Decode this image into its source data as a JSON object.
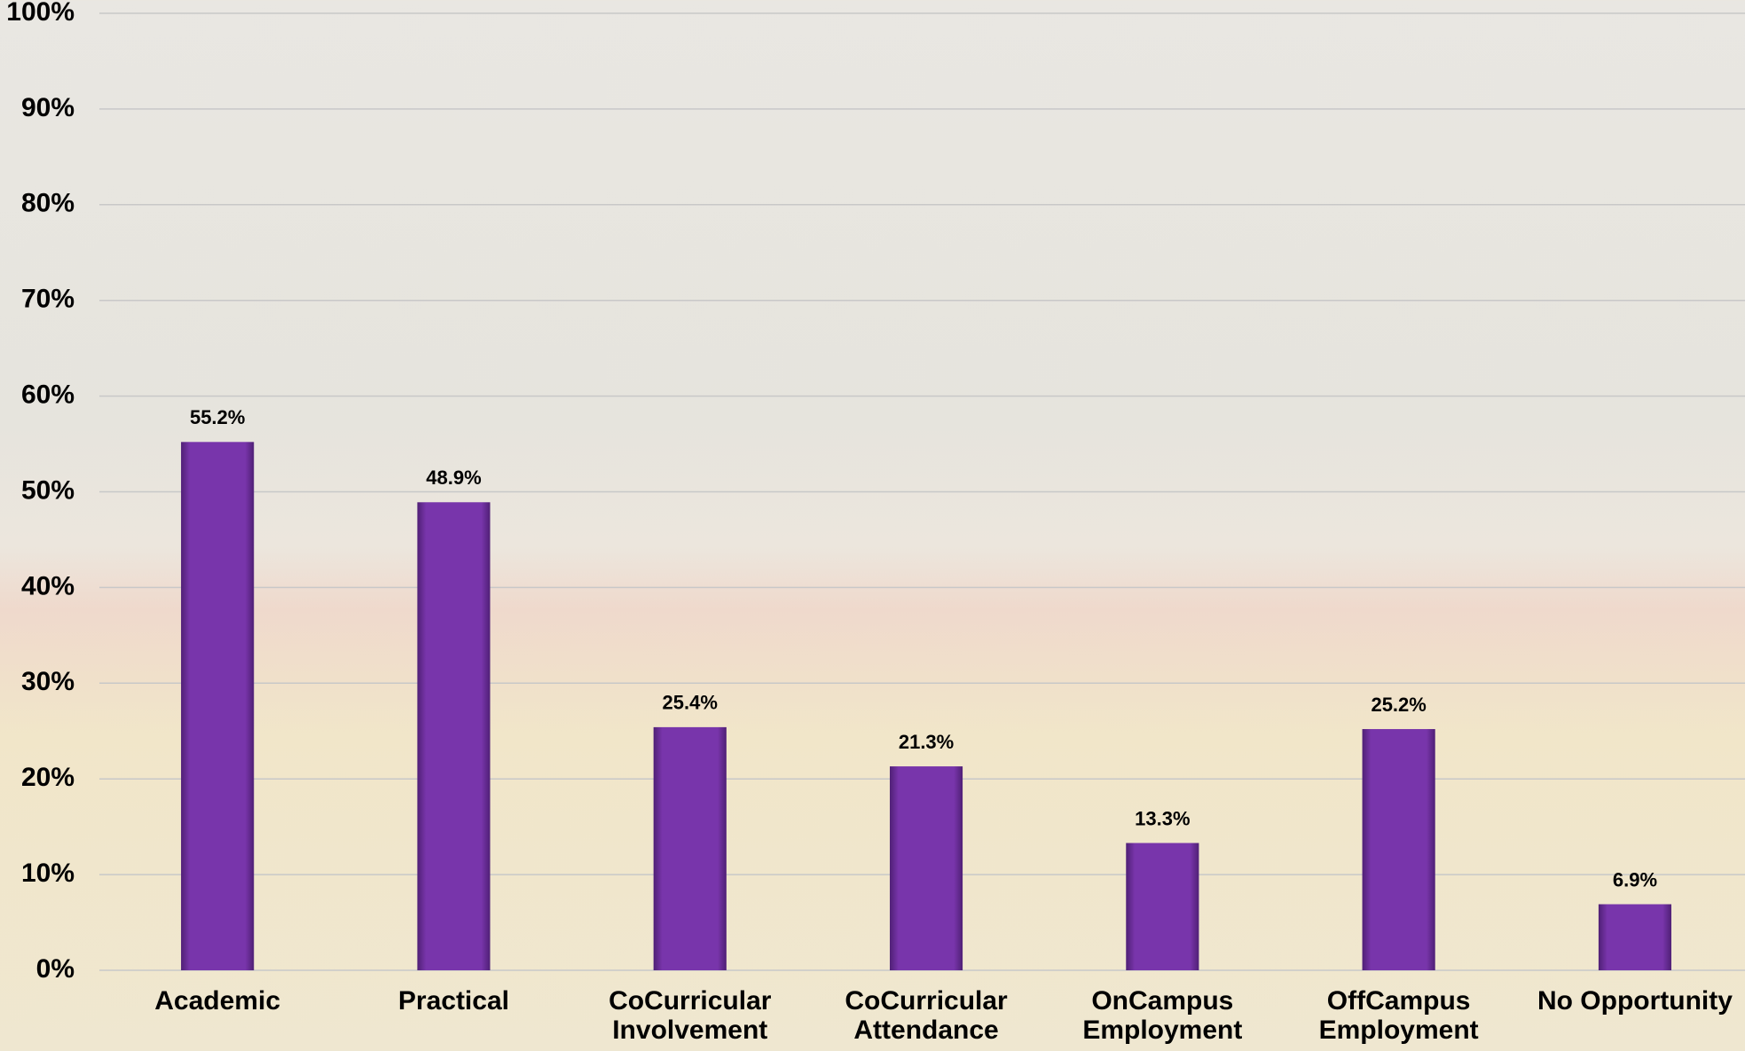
{
  "chart_data": {
    "type": "bar",
    "categories": [
      "Academic",
      "Practical",
      "CoCurricular Involvement",
      "CoCurricular Attendance",
      "OnCampus Employment",
      "OffCampus Employment",
      "No Opportunity"
    ],
    "values": [
      55.2,
      48.9,
      25.4,
      21.3,
      13.3,
      25.2,
      6.9
    ],
    "value_labels": [
      "55.2%",
      "48.9%",
      "25.4%",
      "21.3%",
      "13.3%",
      "25.2%",
      "6.9%"
    ],
    "color": "#7030a0",
    "ylim": [
      0,
      100
    ],
    "yticks": [
      {
        "value": 0,
        "label": "0%"
      },
      {
        "value": 10,
        "label": "10%"
      },
      {
        "value": 20,
        "label": "20%"
      },
      {
        "value": 30,
        "label": "30%"
      },
      {
        "value": 40,
        "label": "40%"
      },
      {
        "value": 50,
        "label": "50%"
      },
      {
        "value": 60,
        "label": "60%"
      },
      {
        "value": 70,
        "label": "70%"
      },
      {
        "value": 80,
        "label": "80%"
      },
      {
        "value": 90,
        "label": "90%"
      },
      {
        "value": 100,
        "label": "100%"
      }
    ],
    "grid": true
  }
}
